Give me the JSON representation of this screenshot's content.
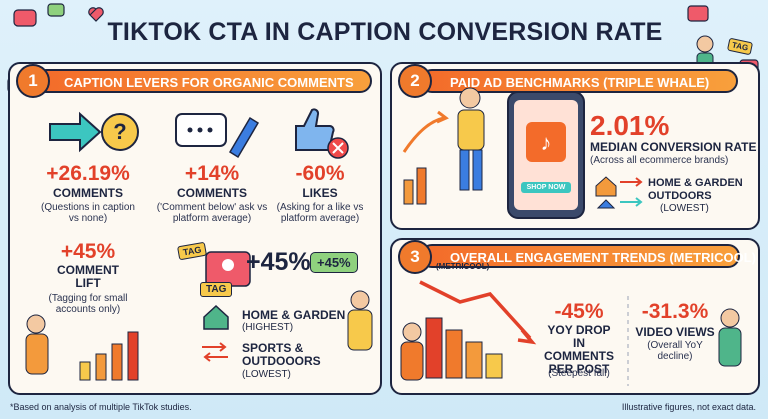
{
  "title": "TIKTOK CTA IN CAPTION CONVERSION RATE",
  "tag_badge": "TAG",
  "panels": [
    {
      "number": "1",
      "title": "CAPTION LEVERS FOR ORGANIC COMMENTS",
      "stats": [
        {
          "value": "+26.19%",
          "label": "COMMENTS",
          "note": "(Questions in caption vs none)"
        },
        {
          "value": "+14%",
          "label": "COMMENTS",
          "note": "('Comment below' ask vs platform average)"
        },
        {
          "value": "-60%",
          "label": "LIKES",
          "note": "(Asking for a like vs platform average)"
        },
        {
          "value": "+45%",
          "label": "COMMENT LIFT",
          "note": "(Tagging for small accounts only)"
        }
      ],
      "tags": [
        "TAG",
        "TAG"
      ],
      "tag_lift": "+45%",
      "tag_lift_badge": "+45%",
      "categories": [
        {
          "name": "HOME & GARDEN",
          "note": "(HIGHEST)"
        },
        {
          "name": "SPORTS & OUTDOOORS",
          "note": "(LOWEST)"
        }
      ]
    },
    {
      "number": "2",
      "title": "PAID AD BENCHMARKS (TRIPLE WHALE)",
      "button": "SHOP NOW",
      "stat": {
        "value": "2.01%",
        "label": "MEDIAN CONVERSION RATE",
        "note": "(Across all ecommerce brands)"
      },
      "categories": [
        "HOME & GARDEN",
        "OUTDOORS"
      ],
      "categories_note": "(LOWEST)"
    },
    {
      "number": "3",
      "title": "OVERALL ENGAGEMENT TRENDS (METRICOOL)",
      "subtitle": "(METRICOOL)",
      "stats": [
        {
          "value": "-45%",
          "label": "YOY DROP IN COMMENTS PER POST",
          "note": "(Steepest fall)"
        },
        {
          "value": "-31.3%",
          "label": "VIDEO VIEWS",
          "note": "(Overall YoY decline)"
        }
      ]
    }
  ],
  "footer": {
    "left": "*Based on analysis of multiple TikTok studies.",
    "right": "Illustrative figures, not exact data."
  }
}
